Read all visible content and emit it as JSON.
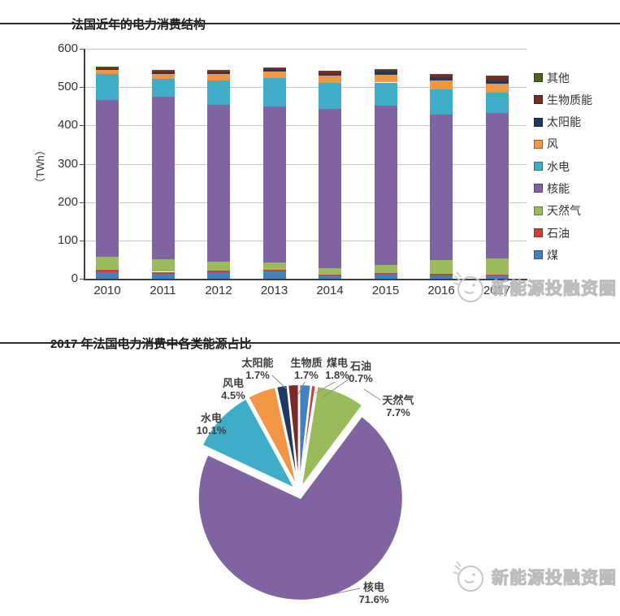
{
  "watermark": {
    "text": "新能源投融资圈"
  },
  "chart_data": [
    {
      "type": "bar",
      "stacked": true,
      "title": "法国近年的电力消费结构",
      "xlabel": "",
      "ylabel": "（TWh）",
      "ylim": [
        0,
        600
      ],
      "yticks": [
        0,
        100,
        200,
        300,
        400,
        500,
        600
      ],
      "grid": true,
      "legend_position": "right",
      "legend_order_top_to_bottom": [
        "其他",
        "生物质能",
        "太阳能",
        "风",
        "水电",
        "核能",
        "天然气",
        "石油",
        "煤"
      ],
      "categories": [
        "2010",
        "2011",
        "2012",
        "2013",
        "2014",
        "2015",
        "2016",
        "2017"
      ],
      "series": [
        {
          "name": "煤",
          "color": "#4280BE",
          "values": [
            18,
            13,
            17,
            20,
            8,
            12,
            9,
            8
          ]
        },
        {
          "name": "石油",
          "color": "#C9403B",
          "values": [
            6,
            5,
            4,
            4,
            3,
            3,
            3,
            3
          ]
        },
        {
          "name": "天然气",
          "color": "#9ABB59",
          "values": [
            33,
            32,
            24,
            19,
            16,
            21,
            36,
            41
          ]
        },
        {
          "name": "核能",
          "color": "#8064A2",
          "values": [
            410,
            424,
            409,
            407,
            417,
            415,
            380,
            380
          ]
        },
        {
          "name": "水电",
          "color": "#3FACC8",
          "values": [
            68,
            47,
            64,
            74,
            68,
            61,
            66,
            54
          ]
        },
        {
          "name": "风",
          "color": "#F29646",
          "values": [
            11,
            14,
            17,
            17,
            17,
            21,
            23,
            22
          ]
        },
        {
          "name": "太阳能",
          "color": "#1F3864",
          "values": [
            1,
            3,
            4,
            5,
            6,
            7,
            8,
            10
          ]
        },
        {
          "name": "生物质能",
          "color": "#7B2B27",
          "values": [
            4,
            4,
            5,
            5,
            6,
            7,
            8,
            10
          ]
        },
        {
          "name": "其他",
          "color": "#4E6228",
          "values": [
            3,
            2,
            1,
            1,
            1,
            1,
            1,
            1
          ]
        }
      ]
    },
    {
      "type": "pie",
      "title": "2017 年法国电力消费中各类能源占比",
      "exploded": true,
      "start_angle_deg": 0,
      "direction": "clockwise",
      "slices": [
        {
          "name": "煤电",
          "pct": 1.8,
          "color": "#4280BE"
        },
        {
          "name": "石油",
          "pct": 0.7,
          "color": "#C9403B"
        },
        {
          "name": "天然气",
          "pct": 7.7,
          "color": "#9ABB59"
        },
        {
          "name": "核电",
          "pct": 71.6,
          "color": "#8064A2"
        },
        {
          "name": "水电",
          "pct": 10.1,
          "color": "#3FACC8"
        },
        {
          "name": "风电",
          "pct": 4.5,
          "color": "#F29646"
        },
        {
          "name": "太阳能",
          "pct": 1.7,
          "color": "#1F3864"
        },
        {
          "name": "生物质",
          "pct": 1.7,
          "color": "#7B2B27"
        }
      ]
    }
  ]
}
